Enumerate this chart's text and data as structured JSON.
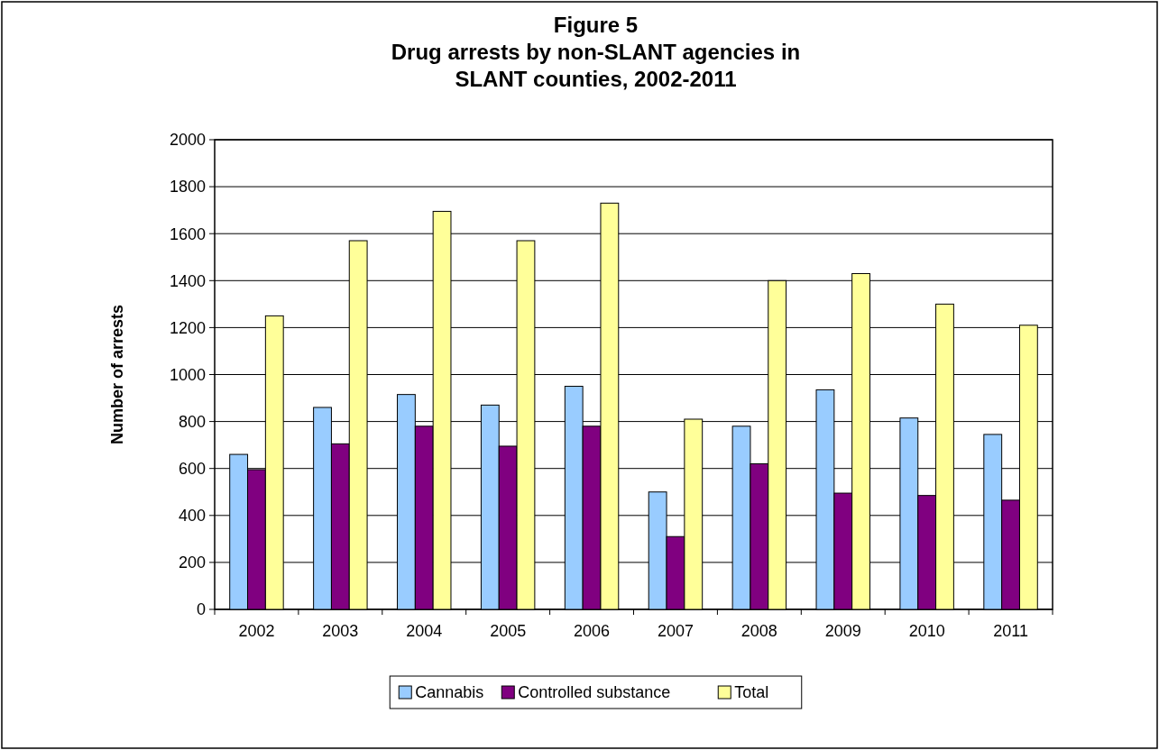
{
  "chart_data": {
    "type": "bar",
    "title": "Figure 5\nDrug arrests by non-SLANT agencies in\nSLANT counties, 2002-2011",
    "ylabel": "Number of arrests",
    "categories": [
      "2002",
      "2003",
      "2004",
      "2005",
      "2006",
      "2007",
      "2008",
      "2009",
      "2010",
      "2011"
    ],
    "series": [
      {
        "name": "Cannabis",
        "color": "#99ccff",
        "values": [
          660,
          860,
          915,
          870,
          950,
          500,
          780,
          935,
          815,
          745
        ]
      },
      {
        "name": "Controlled substance",
        "color": "#800080",
        "values": [
          595,
          705,
          780,
          695,
          780,
          310,
          620,
          495,
          485,
          465
        ]
      },
      {
        "name": "Total",
        "color": "#ffff99",
        "values": [
          1250,
          1570,
          1695,
          1570,
          1730,
          810,
          1400,
          1430,
          1300,
          1210
        ]
      }
    ],
    "ylim": [
      0,
      2000
    ],
    "yticks": [
      0,
      200,
      400,
      600,
      800,
      1000,
      1200,
      1400,
      1600,
      1800,
      2000
    ],
    "grid": "y",
    "legend": "bottom"
  }
}
